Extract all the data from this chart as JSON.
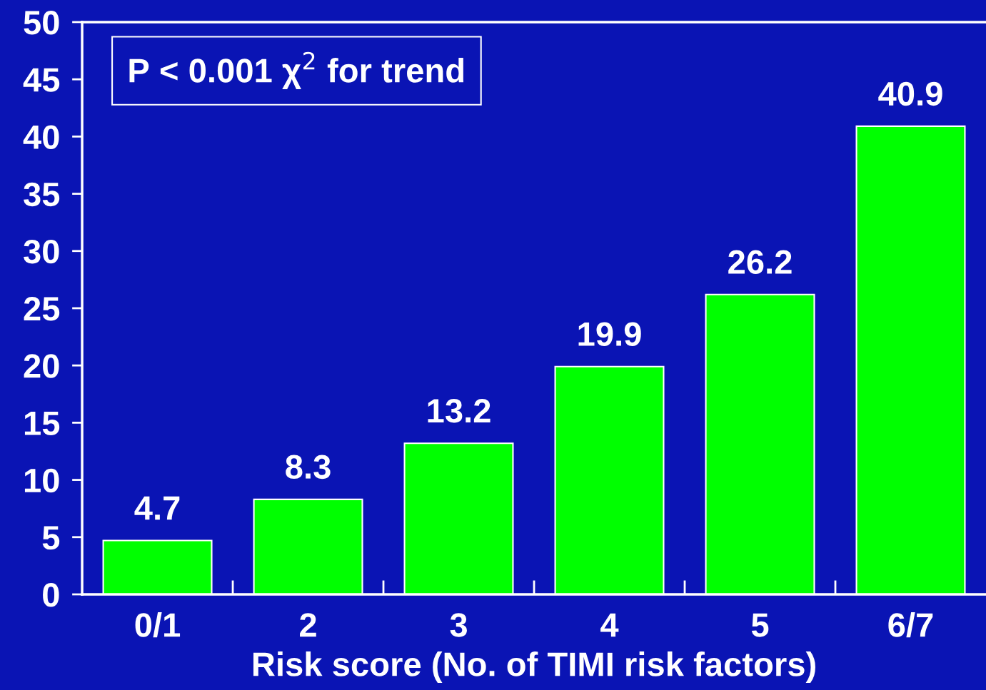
{
  "chart_data": {
    "type": "bar",
    "xlabel": "Risk score (No. of TIMI risk factors)",
    "categories": [
      "0/1",
      "2",
      "3",
      "4",
      "5",
      "6/7"
    ],
    "values": [
      4.7,
      8.3,
      13.2,
      19.9,
      26.2,
      40.9
    ],
    "color": "#00ff00",
    "ylim": [
      0,
      50
    ],
    "yticks": [
      0,
      5,
      10,
      15,
      20,
      25,
      30,
      35,
      40,
      45,
      50
    ],
    "data_labels": true,
    "grid": false,
    "legend": false,
    "annotations": [
      "P < 0.001 χ$^{2}$ for trend"
    ]
  }
}
